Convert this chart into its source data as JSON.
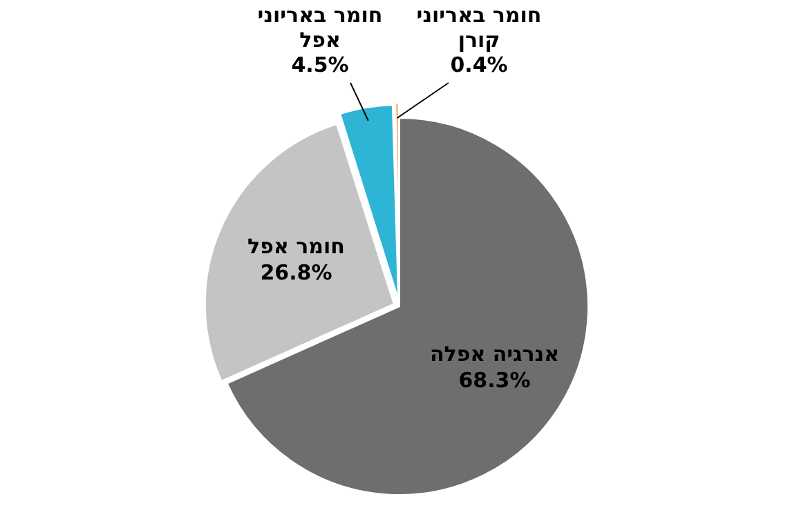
{
  "chart_data": {
    "type": "pie",
    "categories": [
      "אנרגיה אפלה",
      "חומר אפל",
      "חומר באריוני אפל",
      "חומר באריוני קורן"
    ],
    "values": [
      68.3,
      26.8,
      4.5,
      0.4
    ],
    "colors": [
      "#6e6e6e",
      "#c4c4c4",
      "#2eb4d4",
      "#f08a1e"
    ],
    "value_labels": [
      "68.3%",
      "26.8%",
      "4.5%",
      "0.4%"
    ],
    "legend": false
  }
}
